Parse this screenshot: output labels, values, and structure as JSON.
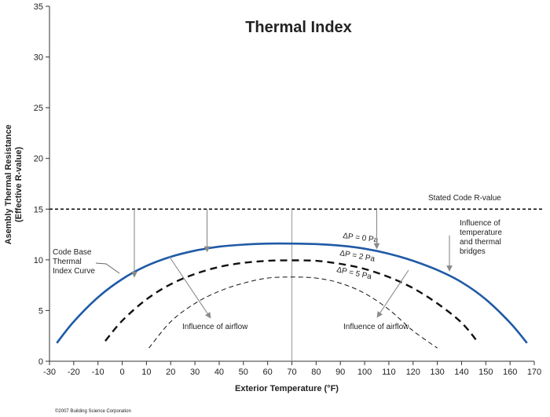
{
  "chart_data": {
    "type": "line",
    "title": "Thermal Index",
    "xlabel": "Exterior Temperature (°F)",
    "ylabel_line1": "Asembly Thermal Resistance",
    "ylabel_line2": "(Effective R-value)",
    "xlim": [
      -30,
      170
    ],
    "ylim": [
      0,
      35
    ],
    "xticks": [
      -30,
      -20,
      -10,
      0,
      10,
      20,
      30,
      40,
      50,
      60,
      70,
      80,
      90,
      100,
      110,
      120,
      130,
      140,
      150,
      160,
      170
    ],
    "yticks": [
      0,
      5,
      10,
      15,
      20,
      25,
      30,
      35
    ],
    "grid": false,
    "series": [
      {
        "name": "ΔP = 0 Pa",
        "style": "solid",
        "color": "#1f5aa6",
        "x": [
          -27,
          -20,
          -10,
          0,
          10,
          20,
          30,
          40,
          50,
          60,
          70,
          80,
          90,
          100,
          110,
          120,
          130,
          140,
          150,
          160,
          167
        ],
        "y": [
          1.8,
          3.9,
          6.3,
          8.1,
          9.4,
          10.3,
          10.9,
          11.3,
          11.5,
          11.6,
          11.6,
          11.55,
          11.4,
          11.1,
          10.6,
          9.9,
          9.0,
          7.8,
          6.1,
          3.8,
          1.8
        ]
      },
      {
        "name": "ΔP = 2 Pa",
        "style": "dashed",
        "color": "#111111",
        "x": [
          -7,
          0,
          10,
          20,
          30,
          40,
          50,
          60,
          70,
          80,
          90,
          100,
          110,
          120,
          130,
          140,
          147
        ],
        "y": [
          2.0,
          4.0,
          6.1,
          7.6,
          8.6,
          9.3,
          9.7,
          9.9,
          9.95,
          9.9,
          9.6,
          9.1,
          8.3,
          7.2,
          5.7,
          3.8,
          1.8
        ]
      },
      {
        "name": "ΔP = 5 Pa",
        "style": "dashed-thin",
        "color": "#111111",
        "x": [
          11,
          20,
          30,
          40,
          50,
          60,
          70,
          80,
          90,
          100,
          110,
          120,
          130
        ],
        "y": [
          1.3,
          3.9,
          5.7,
          6.9,
          7.7,
          8.2,
          8.3,
          8.2,
          7.7,
          6.7,
          5.1,
          3.0,
          1.3
        ]
      }
    ],
    "reference_line": {
      "label": "Stated Code R-value",
      "y": 15
    },
    "vertical_line_x": 70,
    "annotations": {
      "code_base_lines": [
        "Code Base",
        "Thermal",
        "Index Curve"
      ],
      "airflow_left": "Influence of airflow",
      "airflow_right": "Influence of airflow",
      "bridges_lines": [
        "Influence of",
        "temperature",
        "and thermal",
        "bridges"
      ]
    },
    "copyright": "©2007 Building Science Corporation"
  }
}
